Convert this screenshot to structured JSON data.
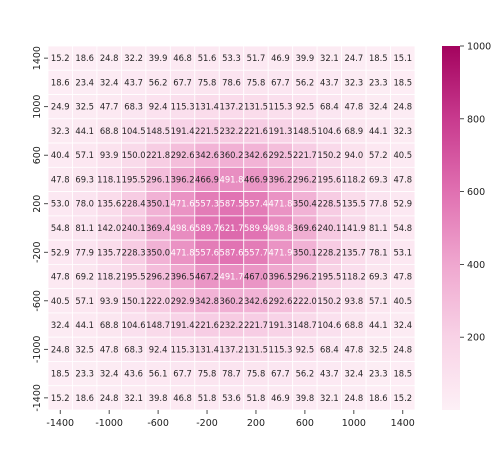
{
  "chart_data": {
    "type": "heatmap",
    "title": "",
    "xlabel": "",
    "ylabel": "",
    "x_tick_labels": [
      "-1400",
      "-1000",
      "-600",
      "-200",
      "200",
      "600",
      "1000",
      "1400"
    ],
    "y_tick_labels": [
      "1400",
      "1000",
      "600",
      "200",
      "-200",
      "-600",
      "-1000",
      "-1400"
    ],
    "colorbar": {
      "min": 0,
      "max": 1000,
      "ticks": [
        200,
        400,
        600,
        800,
        1000
      ],
      "colormap": "PuRd-like",
      "color_low": "#fbe7f1",
      "color_high": "#a3035e"
    },
    "grid_color": "#ffffff",
    "values": [
      [
        15.2,
        18.6,
        24.8,
        32.2,
        39.9,
        46.8,
        51.6,
        53.3,
        51.7,
        46.9,
        39.9,
        32.1,
        24.7,
        18.5,
        15.1
      ],
      [
        18.6,
        23.4,
        32.4,
        43.7,
        56.2,
        67.7,
        75.8,
        78.6,
        75.8,
        67.7,
        56.2,
        43.7,
        32.3,
        23.3,
        18.5
      ],
      [
        24.9,
        32.5,
        47.7,
        68.3,
        92.4,
        115.3,
        131.4,
        137.2,
        131.5,
        115.3,
        92.5,
        68.4,
        47.8,
        32.4,
        24.8
      ],
      [
        32.3,
        44.1,
        68.8,
        104.5,
        148.5,
        191.4,
        221.5,
        232.2,
        221.6,
        191.3,
        148.5,
        104.6,
        68.9,
        44.1,
        32.3
      ],
      [
        40.4,
        57.1,
        93.9,
        150.0,
        221.8,
        292.6,
        342.6,
        360.2,
        342.6,
        292.5,
        221.7,
        150.2,
        94.0,
        57.2,
        40.5
      ],
      [
        47.8,
        69.3,
        118.1,
        195.5,
        296.1,
        396.2,
        466.9,
        491.8,
        466.9,
        396.2,
        296.2,
        195.6,
        118.2,
        69.3,
        47.8
      ],
      [
        53.0,
        78.0,
        135.6,
        228.4,
        350.1,
        471.6,
        557.3,
        587.5,
        557.4,
        471.8,
        350.4,
        228.5,
        135.5,
        77.8,
        52.9
      ],
      [
        54.8,
        81.1,
        142.0,
        240.1,
        369.4,
        498.6,
        589.7,
        621.7,
        589.9,
        498.8,
        369.6,
        240.1,
        141.9,
        81.1,
        54.8
      ],
      [
        52.9,
        77.9,
        135.7,
        228.3,
        350.0,
        471.8,
        557.6,
        587.6,
        557.7,
        471.9,
        350.1,
        228.2,
        135.7,
        78.1,
        53.1
      ],
      [
        47.8,
        69.2,
        118.2,
        195.5,
        296.2,
        396.5,
        467.2,
        491.7,
        467.0,
        396.5,
        296.2,
        195.5,
        118.2,
        69.3,
        47.8
      ],
      [
        40.5,
        57.1,
        93.9,
        150.1,
        222.0,
        292.9,
        342.8,
        360.2,
        342.6,
        292.6,
        222.0,
        150.2,
        93.8,
        57.1,
        40.5
      ],
      [
        32.4,
        44.1,
        68.8,
        104.6,
        148.7,
        191.4,
        221.6,
        232.2,
        221.7,
        191.3,
        148.7,
        104.6,
        68.8,
        44.1,
        32.4
      ],
      [
        24.8,
        32.5,
        47.8,
        68.3,
        92.4,
        115.3,
        131.4,
        137.2,
        131.5,
        115.3,
        92.5,
        68.4,
        47.8,
        32.5,
        24.8
      ],
      [
        18.5,
        23.3,
        32.4,
        43.6,
        56.1,
        67.7,
        75.8,
        78.7,
        75.8,
        67.7,
        56.2,
        43.7,
        32.4,
        23.3,
        18.5
      ],
      [
        15.2,
        18.6,
        24.8,
        32.1,
        39.8,
        46.8,
        51.8,
        53.6,
        51.8,
        46.9,
        39.8,
        32.1,
        24.8,
        18.6,
        15.2
      ]
    ]
  }
}
